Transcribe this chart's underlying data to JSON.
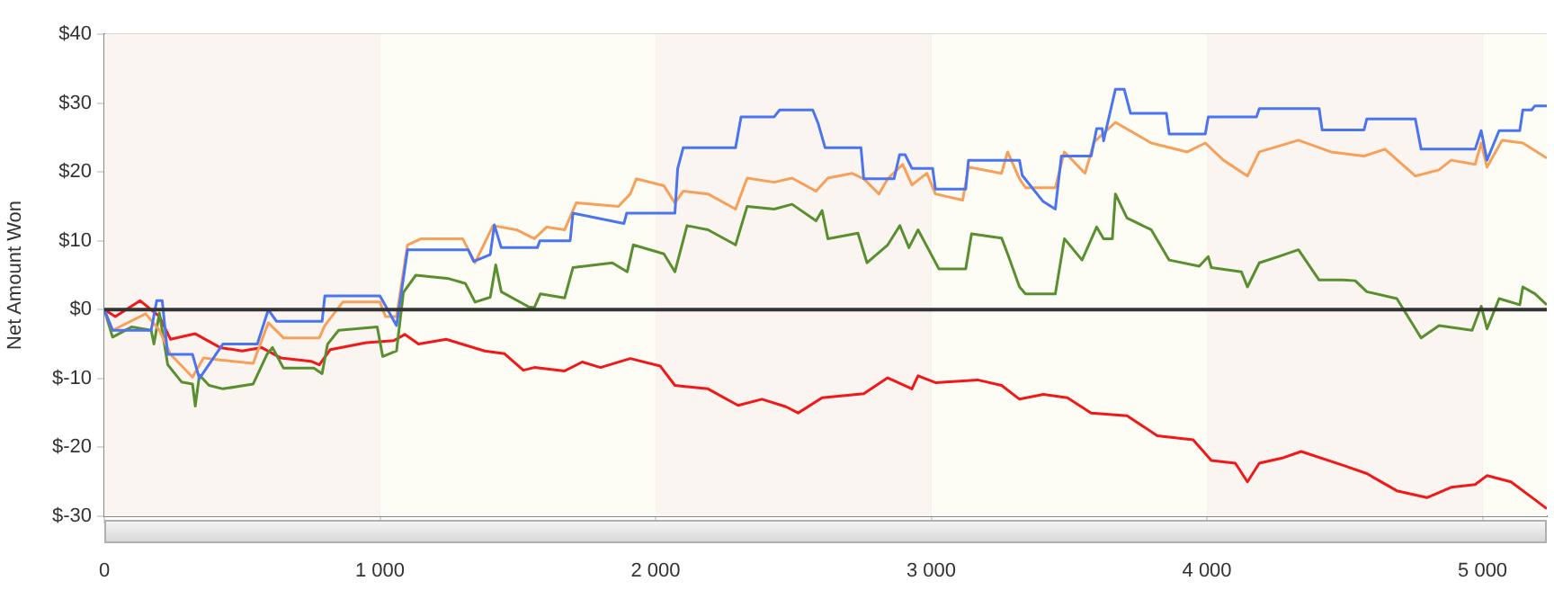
{
  "chart_data": {
    "type": "line",
    "ylabel": "Net Amount Won",
    "xlim": [
      0,
      5233
    ],
    "ylim": [
      -30,
      40
    ],
    "xticks": [
      0,
      {
        "value": 1000,
        "label": "1 000"
      },
      {
        "value": 2000,
        "label": "2 000"
      },
      {
        "value": 3000,
        "label": "3 000"
      },
      {
        "value": 4000,
        "label": "4 000"
      },
      {
        "value": 5000,
        "label": "5 000"
      }
    ],
    "yticks": [
      {
        "value": -30,
        "label": "$-30"
      },
      {
        "value": -20,
        "label": "$-20"
      },
      {
        "value": -10,
        "label": "$-10"
      },
      {
        "value": 0,
        "label": "$0"
      },
      {
        "value": 10,
        "label": "$10"
      },
      {
        "value": 20,
        "label": "$20"
      },
      {
        "value": 30,
        "label": "$30"
      },
      {
        "value": 40,
        "label": "$40"
      }
    ],
    "grid": true,
    "legend": false,
    "marker": "none",
    "line_style": "solid",
    "ref_lines": [
      {
        "axis": "y",
        "value": 0,
        "color": "#333333"
      }
    ],
    "bands": [
      {
        "axis": "x",
        "from": 0,
        "to": 1000,
        "color": "#fbf5f2"
      },
      {
        "axis": "x",
        "from": 1000,
        "to": 2000,
        "color": "#fdfdf6"
      },
      {
        "axis": "x",
        "from": 2000,
        "to": 3000,
        "color": "#fbf5f2"
      },
      {
        "axis": "x",
        "from": 3000,
        "to": 4000,
        "color": "#fdfdf6"
      },
      {
        "axis": "x",
        "from": 4000,
        "to": 5000,
        "color": "#fbf5f2"
      },
      {
        "axis": "x",
        "from": 5000,
        "to": 5233,
        "color": "#fdfdf6"
      }
    ],
    "series": [
      {
        "color": "#4a74f0",
        "x": [
          0,
          30,
          170,
          190,
          210,
          230,
          320,
          345,
          430,
          555,
          595,
          625,
          790,
          800,
          1000,
          1060,
          1100,
          1320,
          1340,
          1400,
          1415,
          1440,
          1571,
          1580,
          1690,
          1700,
          1885,
          1895,
          2070,
          2080,
          2100,
          2290,
          2310,
          2430,
          2450,
          2570,
          2590,
          2615,
          2745,
          2755,
          2865,
          2885,
          2905,
          2930,
          3005,
          3015,
          3125,
          3135,
          3320,
          3330,
          3406,
          3450,
          3472,
          3580,
          3600,
          3620,
          3625,
          3668,
          3700,
          3723,
          3853,
          3863,
          3994,
          4005,
          4180,
          4190,
          4407,
          4418,
          4570,
          4580,
          4756,
          4777,
          4973,
          4995,
          5016,
          5060,
          5135,
          5146,
          5178,
          5190,
          5233
        ],
        "values": [
          0,
          -3,
          -3,
          1.3,
          1.3,
          -6.5,
          -6.5,
          -10,
          -5,
          -5,
          0,
          -1.7,
          -1.7,
          2,
          2,
          -2.3,
          8.7,
          8.7,
          7,
          8,
          12.3,
          9,
          9,
          10,
          10,
          14,
          12.5,
          14,
          14,
          20.5,
          23.5,
          23.5,
          28,
          28,
          29,
          29,
          27,
          23.5,
          23.5,
          19,
          19,
          22.5,
          22.5,
          20.5,
          20.5,
          17.5,
          17.5,
          21.7,
          21.7,
          19.5,
          15.7,
          14.6,
          22.3,
          22.3,
          26.3,
          26.3,
          24.5,
          32,
          32,
          28.5,
          28.5,
          25.5,
          25.5,
          28,
          28,
          29.2,
          29.2,
          26.1,
          26.1,
          27.7,
          27.7,
          23.3,
          23.3,
          26,
          21.7,
          26,
          26,
          29,
          29,
          29.6,
          29.6
        ]
      },
      {
        "color": "#f7a05a",
        "x": [
          0,
          30,
          150,
          200,
          240,
          320,
          360,
          420,
          540,
          595,
          650,
          780,
          800,
          865,
          1000,
          1020,
          1060,
          1100,
          1150,
          1300,
          1345,
          1410,
          1495,
          1560,
          1605,
          1670,
          1712,
          1865,
          1908,
          1930,
          2030,
          2070,
          2100,
          2190,
          2290,
          2332,
          2430,
          2495,
          2582,
          2625,
          2712,
          2755,
          2810,
          2842,
          2896,
          2930,
          2984,
          3015,
          3114,
          3135,
          3255,
          3277,
          3320,
          3342,
          3450,
          3483,
          3558,
          3590,
          3668,
          3798,
          3929,
          3994,
          4060,
          4147,
          4190,
          4332,
          4450,
          4570,
          4646,
          4756,
          4842,
          4886,
          4973,
          4995,
          5016,
          5071,
          5146,
          5233
        ],
        "values": [
          0,
          -3,
          -0.6,
          -3,
          -6.5,
          -9.8,
          -7,
          -7.3,
          -7.8,
          -1.9,
          -4.1,
          -4.1,
          -2.3,
          1.1,
          1.1,
          -1,
          -1,
          9.4,
          10.3,
          10.3,
          6.8,
          12.2,
          11.6,
          10.3,
          12,
          11.6,
          15.5,
          15,
          16.8,
          19,
          18,
          15.5,
          17.2,
          16.8,
          14.6,
          19.1,
          18.5,
          19.1,
          17.2,
          19.1,
          19.8,
          19,
          16.8,
          19,
          21.1,
          18.1,
          19.8,
          16.8,
          15.9,
          20.7,
          19.8,
          22.9,
          19,
          17.7,
          17.7,
          22.9,
          19.8,
          24.3,
          27.2,
          24.2,
          22.9,
          24.2,
          21.7,
          19.4,
          22.9,
          24.6,
          22.9,
          22.3,
          23.3,
          19.4,
          20.3,
          21.7,
          21.1,
          24.2,
          20.7,
          24.6,
          24.2,
          22
        ]
      },
      {
        "color": "#5a8f30",
        "x": [
          0,
          30,
          100,
          170,
          180,
          200,
          230,
          280,
          320,
          330,
          345,
          380,
          430,
          540,
          590,
          610,
          650,
          760,
          790,
          810,
          850,
          990,
          1010,
          1060,
          1085,
          1130,
          1250,
          1310,
          1345,
          1400,
          1420,
          1440,
          1540,
          1560,
          1582,
          1670,
          1700,
          1843,
          1897,
          1919,
          2030,
          2070,
          2114,
          2190,
          2290,
          2332,
          2430,
          2495,
          2582,
          2604,
          2625,
          2734,
          2767,
          2842,
          2886,
          2919,
          2952,
          3028,
          3125,
          3146,
          3255,
          3277,
          3320,
          3342,
          3450,
          3483,
          3547,
          3600,
          3625,
          3657,
          3668,
          3710,
          3798,
          3863,
          3972,
          4005,
          4016,
          4125,
          4147,
          4190,
          4266,
          4332,
          4407,
          4494,
          4538,
          4580,
          4689,
          4777,
          4842,
          4962,
          4995,
          5016,
          5060,
          5135,
          5146,
          5190,
          5233
        ],
        "values": [
          0,
          -4,
          -2.5,
          -3,
          -5,
          -0.5,
          -8,
          -10.5,
          -10.8,
          -14,
          -9.5,
          -11,
          -11.5,
          -10.8,
          -6.5,
          -5.5,
          -8.5,
          -8.5,
          -9.3,
          -5,
          -3,
          -2.5,
          -6.8,
          -6,
          2.5,
          5,
          4.5,
          3.8,
          1.1,
          1.8,
          6.5,
          2.6,
          0.4,
          0.3,
          2.3,
          1.7,
          6.1,
          6.8,
          5.5,
          9.4,
          8.1,
          5.5,
          12.2,
          11.6,
          9.4,
          15,
          14.6,
          15.3,
          12.9,
          14.4,
          10.3,
          11.1,
          6.8,
          9.4,
          12.2,
          9,
          11.6,
          5.9,
          5.9,
          11,
          10.4,
          8.1,
          3.3,
          2.3,
          2.3,
          10.3,
          7.2,
          12,
          10.3,
          10.3,
          16.8,
          13.3,
          11.6,
          7.2,
          6.3,
          7.7,
          6.1,
          5.5,
          3.3,
          6.8,
          7.8,
          8.7,
          4.3,
          4.3,
          4.2,
          2.6,
          1.6,
          -4.1,
          -2.3,
          -3,
          0.5,
          -2.8,
          1.6,
          0.7,
          3.3,
          2.3,
          0.7
        ]
      },
      {
        "color": "#f01818",
        "x": [
          0,
          40,
          130,
          200,
          240,
          330,
          420,
          500,
          570,
          640,
          750,
          780,
          820,
          950,
          1050,
          1090,
          1140,
          1240,
          1380,
          1452,
          1520,
          1560,
          1670,
          1734,
          1800,
          1908,
          2017,
          2070,
          2190,
          2299,
          2386,
          2473,
          2517,
          2604,
          2755,
          2842,
          2930,
          2952,
          3015,
          3168,
          3255,
          3320,
          3407,
          3494,
          3580,
          3710,
          3820,
          3950,
          4016,
          4103,
          4147,
          4190,
          4277,
          4342,
          4494,
          4580,
          4689,
          4798,
          4886,
          4973,
          5016,
          5103,
          5190,
          5233
        ],
        "values": [
          0,
          -1,
          1.3,
          -1,
          -4.3,
          -3.5,
          -5.5,
          -6,
          -5.5,
          -7,
          -7.5,
          -8,
          -5.8,
          -4.8,
          -4.5,
          -3.6,
          -5,
          -4.3,
          -6,
          -6.4,
          -8.8,
          -8.4,
          -8.9,
          -7.6,
          -8.4,
          -7.1,
          -8.2,
          -11,
          -11.5,
          -13.9,
          -13,
          -14.1,
          -15,
          -12.8,
          -12.2,
          -9.9,
          -11.5,
          -9.6,
          -10.6,
          -10.2,
          -11,
          -13,
          -12.3,
          -12.8,
          -15,
          -15.4,
          -18.3,
          -18.9,
          -21.9,
          -22.3,
          -25,
          -22.3,
          -21.5,
          -20.6,
          -22.6,
          -23.8,
          -26.3,
          -27.3,
          -25.8,
          -25.4,
          -24.1,
          -25,
          -27.6,
          -28.9
        ]
      }
    ]
  }
}
